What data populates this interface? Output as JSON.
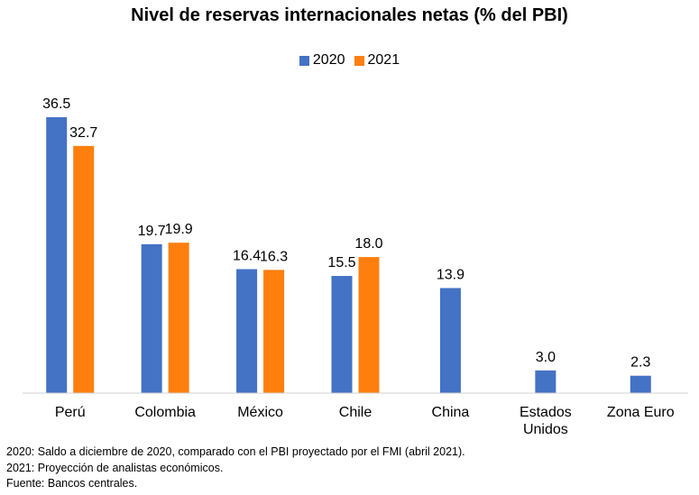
{
  "chart_data": {
    "type": "bar",
    "title": "Nivel de reservas internacionales netas (% del PBI)",
    "xlabel": "",
    "ylabel": "",
    "ylim": [
      0,
      36.5
    ],
    "grid": false,
    "legend_position": "top-center",
    "categories": [
      [
        "Perú"
      ],
      [
        "Colombia"
      ],
      [
        "México"
      ],
      [
        "Chile"
      ],
      [
        "China"
      ],
      [
        "Estados",
        "Unidos"
      ],
      [
        "Zona Euro"
      ]
    ],
    "series": [
      {
        "name": "2020",
        "color": "#4472C4",
        "values": [
          36.5,
          19.7,
          16.4,
          15.5,
          13.9,
          3.0,
          2.3
        ],
        "labels": [
          "36.5",
          "19.7",
          "16.4",
          "15.5",
          "13.9",
          "3.0",
          "2.3"
        ]
      },
      {
        "name": "2021",
        "color": "#FF7F0E",
        "values": [
          32.7,
          19.9,
          16.3,
          18.0,
          null,
          null,
          null
        ],
        "labels": [
          "32.7",
          "19.9",
          "16.3",
          "18.0",
          null,
          null,
          null
        ]
      }
    ]
  },
  "footnotes": {
    "line1": "2020: Saldo a diciembre de 2020, comparado con el PBI proyectado por el FMI (abril 2021).",
    "line2": "2021: Proyección de analistas económicos.",
    "line3": "Fuente: Bancos centrales."
  }
}
